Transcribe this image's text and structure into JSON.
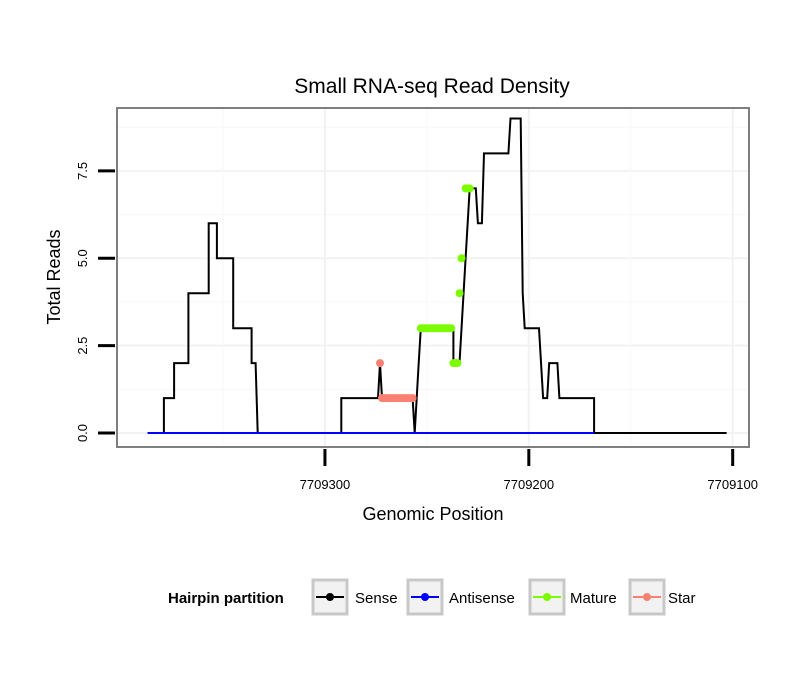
{
  "chart_data": {
    "type": "line",
    "title": "Small RNA-seq Read Density",
    "xlabel": "Genomic Position",
    "ylabel": "Total Reads",
    "x_reversed": true,
    "xlim": [
      7709402,
      7709092
    ],
    "ylim": [
      -0.4,
      9.3
    ],
    "x_ticks": [
      {
        "value": 7709300,
        "label": "7709300"
      },
      {
        "value": 7709200,
        "label": "7709200"
      },
      {
        "value": 7709100,
        "label": "7709100"
      }
    ],
    "y_ticks": [
      {
        "value": 0,
        "label": "0.0"
      },
      {
        "value": 2.5,
        "label": "2.5"
      },
      {
        "value": 5,
        "label": "5.0"
      },
      {
        "value": 7.5,
        "label": "7.5"
      }
    ],
    "grid": true,
    "legend": {
      "title": "Hairpin partition",
      "position": "bottom",
      "entries": [
        {
          "name": "Sense",
          "color": "#000000"
        },
        {
          "name": "Antisense",
          "color": "#0000ff"
        },
        {
          "name": "Mature",
          "color": "#7cfc00"
        },
        {
          "name": "Star",
          "color": "#fa8072"
        }
      ]
    },
    "series": [
      {
        "name": "Sense",
        "color": "#000000",
        "style": "line",
        "points": [
          [
            7709387,
            0
          ],
          [
            7709379,
            0
          ],
          [
            7709379,
            1
          ],
          [
            7709374,
            1
          ],
          [
            7709374,
            2
          ],
          [
            7709367,
            2
          ],
          [
            7709367,
            4
          ],
          [
            7709357,
            4
          ],
          [
            7709357,
            6
          ],
          [
            7709353,
            6
          ],
          [
            7709353,
            5
          ],
          [
            7709345,
            5
          ],
          [
            7709345,
            3
          ],
          [
            7709336,
            3
          ],
          [
            7709336,
            2
          ],
          [
            7709334,
            2
          ],
          [
            7709333,
            0
          ],
          [
            7709292,
            0
          ],
          [
            7709292,
            1
          ],
          [
            7709274,
            1
          ],
          [
            7709273,
            2
          ],
          [
            7709272,
            1
          ],
          [
            7709257,
            1
          ],
          [
            7709256,
            0
          ],
          [
            7709254,
            2
          ],
          [
            7709253,
            3
          ],
          [
            7709237,
            3
          ],
          [
            7709237,
            2
          ],
          [
            7709234,
            2
          ],
          [
            7709231,
            5
          ],
          [
            7709229,
            7
          ],
          [
            7709226,
            7
          ],
          [
            7709225,
            6
          ],
          [
            7709223,
            6
          ],
          [
            7709222,
            8
          ],
          [
            7709210,
            8
          ],
          [
            7709209,
            9
          ],
          [
            7709204,
            9
          ],
          [
            7709203,
            4
          ],
          [
            7709202,
            3
          ],
          [
            7709195,
            3
          ],
          [
            7709193,
            1
          ],
          [
            7709191,
            1
          ],
          [
            7709190,
            2
          ],
          [
            7709186,
            2
          ],
          [
            7709185,
            1
          ],
          [
            7709168,
            1
          ],
          [
            7709168,
            0
          ],
          [
            7709103,
            0
          ]
        ]
      },
      {
        "name": "Antisense",
        "color": "#0000ff",
        "style": "line",
        "points": [
          [
            7709387,
            0
          ],
          [
            7709168,
            0
          ]
        ]
      },
      {
        "name": "Mature",
        "color": "#7cfc00",
        "style": "points",
        "points": [
          [
            7709253,
            3
          ],
          [
            7709252,
            3
          ],
          [
            7709251,
            3
          ],
          [
            7709250,
            3
          ],
          [
            7709249,
            3
          ],
          [
            7709248,
            3
          ],
          [
            7709247,
            3
          ],
          [
            7709246,
            3
          ],
          [
            7709245,
            3
          ],
          [
            7709244,
            3
          ],
          [
            7709243,
            3
          ],
          [
            7709242,
            3
          ],
          [
            7709241,
            3
          ],
          [
            7709240,
            3
          ],
          [
            7709239,
            3
          ],
          [
            7709238,
            3
          ],
          [
            7709237,
            2
          ],
          [
            7709236,
            2
          ],
          [
            7709235,
            2
          ],
          [
            7709234,
            4
          ],
          [
            7709233,
            5
          ],
          [
            7709231,
            7
          ],
          [
            7709230,
            7
          ],
          [
            7709229,
            7
          ]
        ]
      },
      {
        "name": "Star",
        "color": "#fa8072",
        "style": "points",
        "points": [
          [
            7709273,
            2
          ],
          [
            7709272,
            1
          ],
          [
            7709271,
            1
          ],
          [
            7709270,
            1
          ],
          [
            7709269,
            1
          ],
          [
            7709268,
            1
          ],
          [
            7709267,
            1
          ],
          [
            7709266,
            1
          ],
          [
            7709265,
            1
          ],
          [
            7709264,
            1
          ],
          [
            7709263,
            1
          ],
          [
            7709262,
            1
          ],
          [
            7709261,
            1
          ],
          [
            7709260,
            1
          ],
          [
            7709259,
            1
          ],
          [
            7709258,
            1
          ],
          [
            7709257,
            1
          ]
        ]
      }
    ]
  }
}
